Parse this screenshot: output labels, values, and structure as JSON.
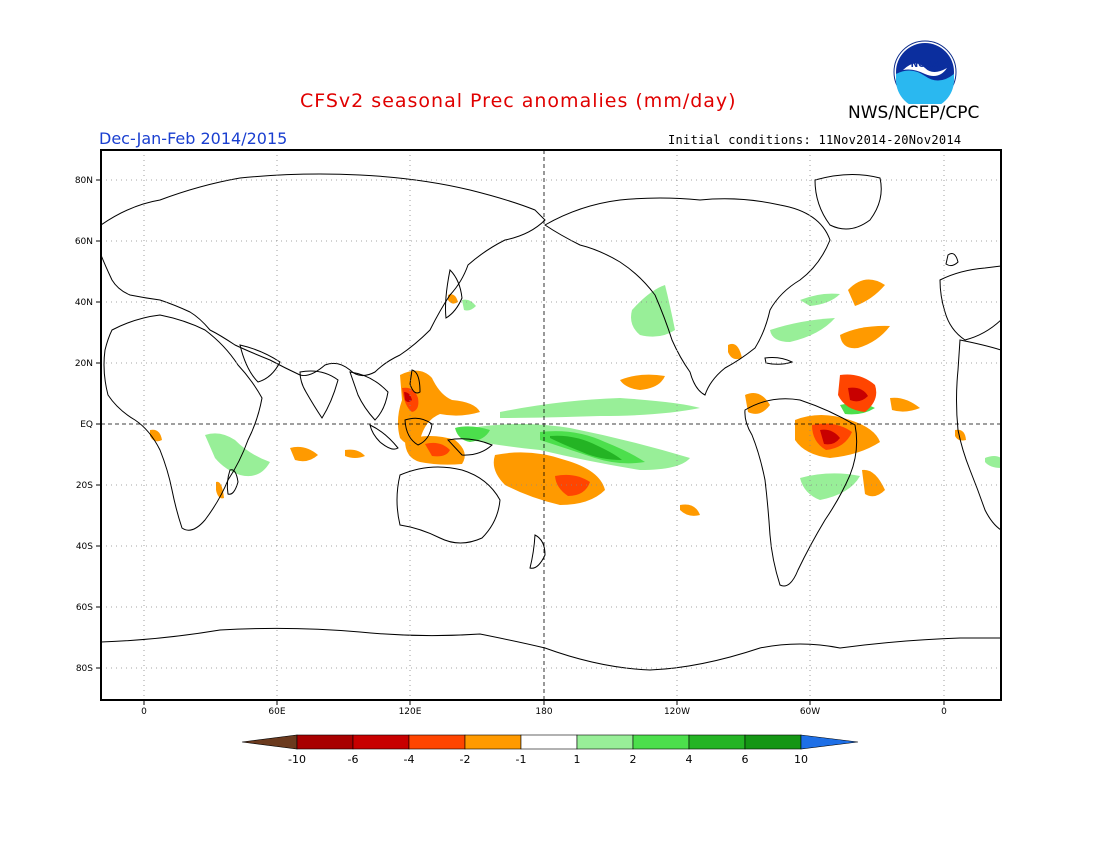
{
  "header": {
    "title": "CFSv2 seasonal Prec anomalies (mm/day)",
    "organization": "NWS/NCEP/CPC",
    "season": "Dec-Jan-Feb 2014/2015",
    "initial_conditions": "Initial conditions: 11Nov2014-20Nov2014",
    "logo_text": "NOAA"
  },
  "map": {
    "projection": "cylindrical equidistant",
    "center_longitude": 180,
    "lat_tick_labels": [
      "80N",
      "60N",
      "40N",
      "20N",
      "EQ",
      "20S",
      "40S",
      "60S",
      "80S"
    ],
    "lon_tick_labels": [
      "0",
      "60E",
      "120E",
      "180",
      "120W",
      "60W",
      "0"
    ],
    "grid": "dotted",
    "reference_lines": [
      "EQ",
      "180"
    ]
  },
  "legend": {
    "labels": [
      "-10",
      "-6",
      "-4",
      "-2",
      "-1",
      "1",
      "2",
      "4",
      "6",
      "10"
    ],
    "colors": [
      "#6b3a1e",
      "#a80000",
      "#c80000",
      "#ff4500",
      "#ff9a00",
      "#ffffff",
      "#98ef98",
      "#4cdf4c",
      "#24b424",
      "#149614",
      "#1e6fe6"
    ]
  }
}
